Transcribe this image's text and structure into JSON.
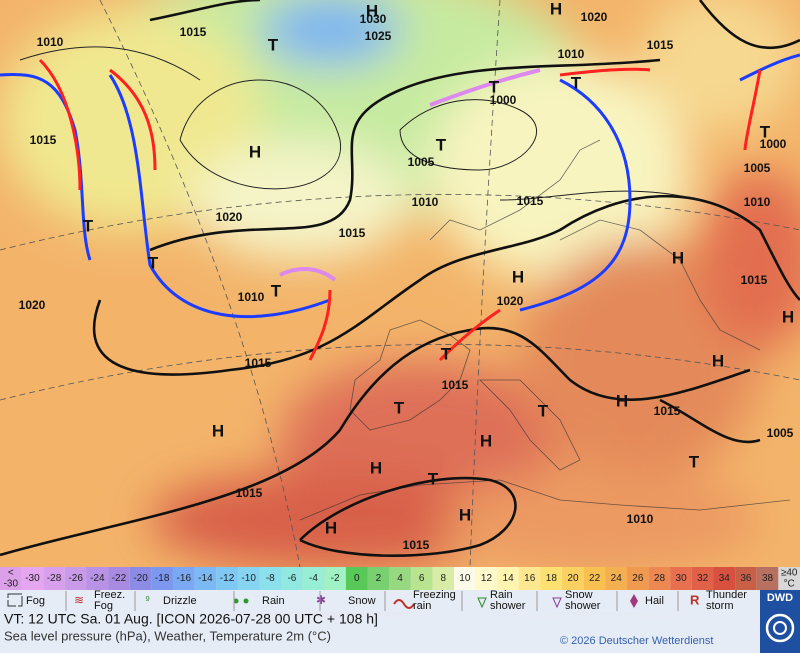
{
  "map": {
    "labels": [
      "1010",
      "1015",
      "1030",
      "1025",
      "1020",
      "1015",
      "1010",
      "1000",
      "1015",
      "1005",
      "1010",
      "1015",
      "1020",
      "1015",
      "1010",
      "1020",
      "1015",
      "1020",
      "1015",
      "1015",
      "1015",
      "1015",
      "1010",
      "1015",
      "1005",
      "1010",
      "1000",
      "1005",
      "H",
      "H",
      "T",
      "H",
      "T",
      "T",
      "T",
      "T",
      "T",
      "T",
      "T",
      "H",
      "H",
      "H",
      "T",
      "H",
      "T",
      "H",
      "T",
      "H",
      "H",
      "H",
      "T",
      "H",
      "H",
      "T"
    ]
  },
  "scale": {
    "first": [
      "<",
      "-30"
    ],
    "values": [
      -30,
      -28,
      -26,
      -24,
      -22,
      -20,
      -18,
      -16,
      -14,
      -12,
      -10,
      -8,
      -6,
      -4,
      -2,
      0,
      2,
      4,
      6,
      8,
      10,
      12,
      14,
      16,
      18,
      20,
      22,
      24,
      26,
      28,
      30,
      32,
      34,
      36,
      38
    ],
    "colors": [
      "#e4a6ee",
      "#d8a0ec",
      "#c89ae8",
      "#b892e4",
      "#a88ae0",
      "#8c8ce6",
      "#7c98ee",
      "#7aa8f2",
      "#7cb8f4",
      "#80c8f4",
      "#86d4f0",
      "#8ce0ec",
      "#90e8e0",
      "#98eed4",
      "#a0f2c4",
      "#58c858",
      "#78d070",
      "#98d880",
      "#b8e490",
      "#d8eca8",
      "#fbfbe8",
      "#fffacc",
      "#fff4b0",
      "#fde890",
      "#fce070",
      "#fad060",
      "#f8c050",
      "#f4b050",
      "#f09a50",
      "#ec8850",
      "#e87050",
      "#e06048",
      "#d85040",
      "#c86048",
      "#b87060"
    ],
    "last": [
      "≥40",
      "°C"
    ]
  },
  "legend": [
    [
      "Fog"
    ],
    [
      "Freez.",
      "Fog"
    ],
    [
      "Drizzle"
    ],
    [
      "Rain"
    ],
    [
      "Snow"
    ],
    [
      "Freezing",
      "rain"
    ],
    [
      "Rain",
      "shower"
    ],
    [
      "Snow",
      "shower"
    ],
    [
      "Hail"
    ],
    [
      "Thunder",
      "storm"
    ]
  ],
  "footer": {
    "valid": "VT: 12 UTC Sa.  01 Aug. [ICON 2026-07-28  00 UTC + 108 h]",
    "description": "Sea level pressure (hPa), Weather, Temperature 2m (°C)",
    "copyright": "© 2026 Deutscher Wetterdienst",
    "logo": "DWD"
  }
}
